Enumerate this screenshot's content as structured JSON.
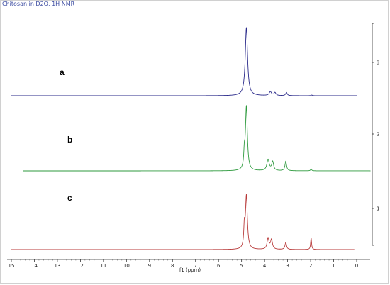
{
  "chart_data": {
    "type": "line",
    "title": "Chitosan in D2O, 1H NMR",
    "xlabel": "f1 (ppm)",
    "xlim": [
      15,
      0
    ],
    "x_ticks": [
      "15",
      "14",
      "13",
      "12",
      "11",
      "10",
      "9",
      "8",
      "7",
      "6",
      "5",
      "4",
      "3",
      "2",
      "1",
      "0"
    ],
    "y_ticks": [
      "1",
      "2",
      "3"
    ],
    "series": [
      {
        "name": "a",
        "color": "#2a2a8a",
        "x_range": [
          15,
          0
        ],
        "peaks": [
          {
            "ppm": 4.79,
            "height": 3.2,
            "width": 0.06
          },
          {
            "ppm": 3.75,
            "height": 0.18,
            "width": 0.06
          },
          {
            "ppm": 3.55,
            "height": 0.14,
            "width": 0.05
          },
          {
            "ppm": 3.05,
            "height": 0.15,
            "width": 0.04
          },
          {
            "ppm": 1.95,
            "height": 0.03,
            "width": 0.03
          }
        ]
      },
      {
        "name": "b",
        "color": "#2e9a3e",
        "x_range": [
          14.5,
          -0.6
        ],
        "peaks": [
          {
            "ppm": 4.88,
            "height": 0.65,
            "width": 0.03
          },
          {
            "ppm": 4.79,
            "height": 3.0,
            "width": 0.05
          },
          {
            "ppm": 3.85,
            "height": 0.52,
            "width": 0.06
          },
          {
            "ppm": 3.65,
            "height": 0.42,
            "width": 0.05
          },
          {
            "ppm": 3.08,
            "height": 0.45,
            "width": 0.04
          },
          {
            "ppm": 1.98,
            "height": 0.09,
            "width": 0.03
          }
        ]
      },
      {
        "name": "c",
        "color": "#b83a3a",
        "x_range": [
          15,
          0.1
        ],
        "peaks": [
          {
            "ppm": 4.88,
            "height": 0.9,
            "width": 0.03
          },
          {
            "ppm": 4.79,
            "height": 2.5,
            "width": 0.05
          },
          {
            "ppm": 3.85,
            "height": 0.52,
            "width": 0.05
          },
          {
            "ppm": 3.7,
            "height": 0.45,
            "width": 0.05
          },
          {
            "ppm": 3.08,
            "height": 0.33,
            "width": 0.04
          },
          {
            "ppm": 1.98,
            "height": 0.55,
            "width": 0.025
          }
        ]
      }
    ]
  },
  "labels": {
    "a": "a",
    "b": "b",
    "c": "c"
  }
}
